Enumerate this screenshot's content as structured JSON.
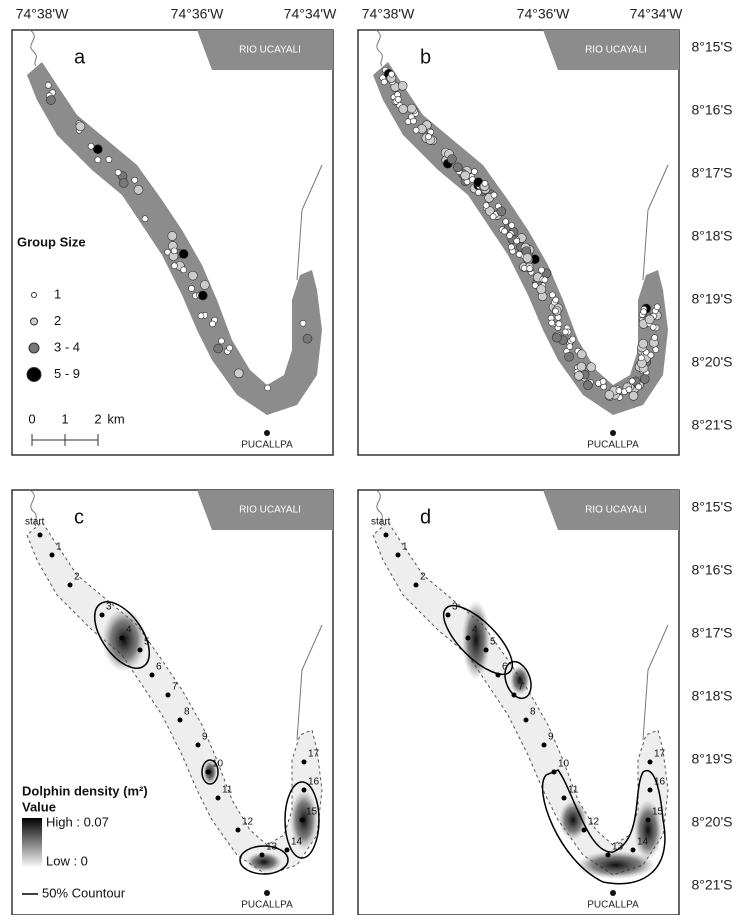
{
  "longitude_labels": [
    "74°38'W",
    "74°36'W",
    "74°34'W"
  ],
  "latitude_labels": [
    "8°15'S",
    "8°16'S",
    "8°17'S",
    "8°18'S",
    "8°19'S",
    "8°20'S",
    "8°21'S"
  ],
  "river_label": "RIO UCAYALI",
  "city_label": "PUCALLPA",
  "panels": [
    {
      "letter": "a"
    },
    {
      "letter": "b"
    },
    {
      "letter": "c"
    },
    {
      "letter": "d"
    }
  ],
  "group_size_legend": {
    "title": "Group Size",
    "items": [
      "1",
      "2",
      "3 - 4",
      "5 - 9"
    ]
  },
  "scale_bar": {
    "labels": [
      "0",
      "1",
      "2",
      "km"
    ]
  },
  "density_legend": {
    "title": "Dolphin density (m²)",
    "value_title": "Value",
    "high": "High : 0.07",
    "low": "Low : 0",
    "contour": "50% Countour"
  },
  "station_labels": [
    "start",
    "1",
    "2",
    "3",
    "4",
    "5",
    "6",
    "7",
    "8",
    "9",
    "10",
    "11",
    "12",
    "13",
    "14",
    "15",
    "16",
    "17"
  ]
}
